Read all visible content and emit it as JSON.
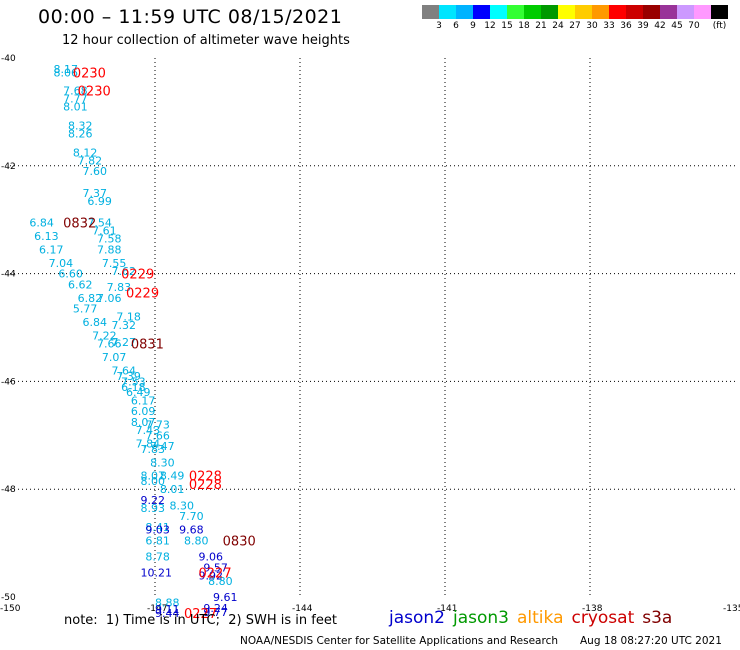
{
  "header": {
    "title": "00:00 – 11:59 UTC 08/15/2021",
    "subtitle": "12 hour collection of altimeter wave heights"
  },
  "legend": {
    "colors": [
      "#808080",
      "#00e5ff",
      "#00b3ff",
      "#0000ff",
      "#00ffff",
      "#33ff33",
      "#00cc00",
      "#009900",
      "#ffff00",
      "#ffcc00",
      "#ff9900",
      "#ff0000",
      "#cc0000",
      "#990000",
      "#993399",
      "#cc99ff",
      "#ff99ff",
      "#000000"
    ],
    "labels": [
      "3",
      "6",
      "9",
      "12",
      "15",
      "18",
      "21",
      "24",
      "27",
      "30",
      "33",
      "36",
      "39",
      "42",
      "45",
      "70",
      "(ft)"
    ]
  },
  "axes": {
    "lat_labels": [
      "-40",
      "-42",
      "-44",
      "-46",
      "-48",
      "-50"
    ],
    "lon_labels": [
      "-150",
      "-147",
      "-144",
      "-141",
      "-138",
      "-135"
    ]
  },
  "observations": [
    {
      "v": "8.17",
      "lon": -149.1,
      "lat": -40.2,
      "c": "#00b0e0"
    },
    {
      "v": "8.06",
      "lon": -149.1,
      "lat": -40.27,
      "c": "#00b0e0"
    },
    {
      "v": "7.68",
      "lon": -148.9,
      "lat": -40.6,
      "c": "#00b0e0"
    },
    {
      "v": "7.77",
      "lon": -148.9,
      "lat": -40.75,
      "c": "#00b0e0"
    },
    {
      "v": "8.01",
      "lon": -148.9,
      "lat": -40.9,
      "c": "#00b0e0"
    },
    {
      "v": "8.32",
      "lon": -148.8,
      "lat": -41.25,
      "c": "#00b0e0"
    },
    {
      "v": "8.26",
      "lon": -148.8,
      "lat": -41.4,
      "c": "#00b0e0"
    },
    {
      "v": "8.12",
      "lon": -148.7,
      "lat": -41.75,
      "c": "#00b0e0"
    },
    {
      "v": "7.82",
      "lon": -148.6,
      "lat": -41.9,
      "c": "#00b0e0"
    },
    {
      "v": "7.60",
      "lon": -148.5,
      "lat": -42.1,
      "c": "#00b0e0"
    },
    {
      "v": "7.37",
      "lon": -148.5,
      "lat": -42.5,
      "c": "#00b0e0"
    },
    {
      "v": "6.99",
      "lon": -148.4,
      "lat": -42.65,
      "c": "#00b0e0"
    },
    {
      "v": "6.84",
      "lon": -149.6,
      "lat": -43.05,
      "c": "#00b0e0"
    },
    {
      "v": "7.54",
      "lon": -148.4,
      "lat": -43.05,
      "c": "#00b0e0"
    },
    {
      "v": "7.61",
      "lon": -148.3,
      "lat": -43.2,
      "c": "#00b0e0"
    },
    {
      "v": "6.13",
      "lon": -149.5,
      "lat": -43.3,
      "c": "#00b0e0"
    },
    {
      "v": "7.58",
      "lon": -148.2,
      "lat": -43.35,
      "c": "#00b0e0"
    },
    {
      "v": "6.17",
      "lon": -149.4,
      "lat": -43.55,
      "c": "#00b0e0"
    },
    {
      "v": "7.88",
      "lon": -148.2,
      "lat": -43.55,
      "c": "#00b0e0"
    },
    {
      "v": "7.04",
      "lon": -149.2,
      "lat": -43.8,
      "c": "#00b0e0"
    },
    {
      "v": "7.55",
      "lon": -148.1,
      "lat": -43.8,
      "c": "#00b0e0"
    },
    {
      "v": "6.60",
      "lon": -149.0,
      "lat": -44.0,
      "c": "#00b0e0"
    },
    {
      "v": "7.62",
      "lon": -147.9,
      "lat": -43.95,
      "c": "#00b0e0"
    },
    {
      "v": "6.62",
      "lon": -148.8,
      "lat": -44.2,
      "c": "#00b0e0"
    },
    {
      "v": "7.83",
      "lon": -148.0,
      "lat": -44.25,
      "c": "#00b0e0"
    },
    {
      "v": "6.82",
      "lon": -148.6,
      "lat": -44.45,
      "c": "#00b0e0"
    },
    {
      "v": "7.06",
      "lon": -148.2,
      "lat": -44.45,
      "c": "#00b0e0"
    },
    {
      "v": "5.77",
      "lon": -148.7,
      "lat": -44.65,
      "c": "#00b0e0"
    },
    {
      "v": "7.18",
      "lon": -147.8,
      "lat": -44.8,
      "c": "#00b0e0"
    },
    {
      "v": "6.84",
      "lon": -148.5,
      "lat": -44.9,
      "c": "#00b0e0"
    },
    {
      "v": "7.32",
      "lon": -147.9,
      "lat": -44.95,
      "c": "#00b0e0"
    },
    {
      "v": "7.22",
      "lon": -148.3,
      "lat": -45.15,
      "c": "#00b0e0"
    },
    {
      "v": "7.66",
      "lon": -148.2,
      "lat": -45.3,
      "c": "#00b0e0"
    },
    {
      "v": "7.27",
      "lon": -147.9,
      "lat": -45.27,
      "c": "#00b0e0"
    },
    {
      "v": "7.07",
      "lon": -148.1,
      "lat": -45.55,
      "c": "#00b0e0"
    },
    {
      "v": "7.64",
      "lon": -147.9,
      "lat": -45.8,
      "c": "#00b0e0"
    },
    {
      "v": "7.39",
      "lon": -147.8,
      "lat": -45.9,
      "c": "#00b0e0"
    },
    {
      "v": "7.53",
      "lon": -147.7,
      "lat": -46.0,
      "c": "#00b0e0"
    },
    {
      "v": "6.18",
      "lon": -147.7,
      "lat": -46.1,
      "c": "#00b0e0"
    },
    {
      "v": "6.49",
      "lon": -147.6,
      "lat": -46.2,
      "c": "#00b0e0"
    },
    {
      "v": "6.17",
      "lon": -147.5,
      "lat": -46.35,
      "c": "#00b0e0"
    },
    {
      "v": "6.09",
      "lon": -147.5,
      "lat": -46.55,
      "c": "#00b0e0"
    },
    {
      "v": "8.07",
      "lon": -147.5,
      "lat": -46.75,
      "c": "#00b0e0"
    },
    {
      "v": "7.73",
      "lon": -147.2,
      "lat": -46.8,
      "c": "#00b0e0"
    },
    {
      "v": "7.43",
      "lon": -147.4,
      "lat": -46.9,
      "c": "#00b0e0"
    },
    {
      "v": "7.66",
      "lon": -147.2,
      "lat": -47.0,
      "c": "#00b0e0"
    },
    {
      "v": "7.84",
      "lon": -147.4,
      "lat": -47.15,
      "c": "#00b0e0"
    },
    {
      "v": "7.47",
      "lon": -147.1,
      "lat": -47.2,
      "c": "#00b0e0"
    },
    {
      "v": "7.83",
      "lon": -147.3,
      "lat": -47.25,
      "c": "#00b0e0"
    },
    {
      "v": "8.30",
      "lon": -147.1,
      "lat": -47.5,
      "c": "#00b0e0"
    },
    {
      "v": "8.07",
      "lon": -147.3,
      "lat": -47.75,
      "c": "#00b0e0"
    },
    {
      "v": "8.49",
      "lon": -146.9,
      "lat": -47.75,
      "c": "#00b0e0"
    },
    {
      "v": "8.00",
      "lon": -147.3,
      "lat": -47.85,
      "c": "#00b0e0"
    },
    {
      "v": "8.01",
      "lon": -146.9,
      "lat": -48.0,
      "c": "#00b0e0"
    },
    {
      "v": "9.22",
      "lon": -147.3,
      "lat": -48.2,
      "c": "#0000cc"
    },
    {
      "v": "8.30",
      "lon": -146.7,
      "lat": -48.3,
      "c": "#00b0e0"
    },
    {
      "v": "8.93",
      "lon": -147.3,
      "lat": -48.35,
      "c": "#00b0e0"
    },
    {
      "v": "7.70",
      "lon": -146.5,
      "lat": -48.5,
      "c": "#00b0e0"
    },
    {
      "v": "8.41",
      "lon": -147.2,
      "lat": -48.7,
      "c": "#00b0e0"
    },
    {
      "v": "9.03",
      "lon": -147.2,
      "lat": -48.75,
      "c": "#0000cc"
    },
    {
      "v": "9.68",
      "lon": -146.5,
      "lat": -48.75,
      "c": "#0000cc"
    },
    {
      "v": "6.81",
      "lon": -147.2,
      "lat": -48.95,
      "c": "#00b0e0"
    },
    {
      "v": "8.80",
      "lon": -146.4,
      "lat": -48.95,
      "c": "#00b0e0"
    },
    {
      "v": "9.06",
      "lon": -146.1,
      "lat": -49.25,
      "c": "#0000cc"
    },
    {
      "v": "8.78",
      "lon": -147.2,
      "lat": -49.25,
      "c": "#00b0e0"
    },
    {
      "v": "9.57",
      "lon": -146.0,
      "lat": -49.45,
      "c": "#0000cc"
    },
    {
      "v": "10.21",
      "lon": -147.3,
      "lat": -49.55,
      "c": "#0000cc"
    },
    {
      "v": "9.92",
      "lon": -146.1,
      "lat": -49.6,
      "c": "#0000cc"
    },
    {
      "v": "8.80",
      "lon": -145.9,
      "lat": -49.7,
      "c": "#00b0e0"
    },
    {
      "v": "9.61",
      "lon": -145.8,
      "lat": -50.0,
      "c": "#0000cc"
    },
    {
      "v": "8.88",
      "lon": -147.0,
      "lat": -50.1,
      "c": "#00b0e0"
    },
    {
      "v": "9.24",
      "lon": -146.0,
      "lat": -50.2,
      "c": "#0000cc"
    },
    {
      "v": "9.11",
      "lon": -147.0,
      "lat": -50.22,
      "c": "#0000cc"
    },
    {
      "v": "9.77",
      "lon": -146.0,
      "lat": -50.28,
      "c": "#0000cc"
    },
    {
      "v": "9.44",
      "lon": -147.0,
      "lat": -50.3,
      "c": "#0000cc"
    }
  ],
  "times": [
    {
      "t": "0230",
      "lon": -148.7,
      "lat": -40.27,
      "c": "#ff0000"
    },
    {
      "t": "0230",
      "lon": -148.6,
      "lat": -40.6,
      "c": "#ff0000"
    },
    {
      "t": "0832",
      "lon": -148.9,
      "lat": -43.05,
      "c": "#800000"
    },
    {
      "t": "0229",
      "lon": -147.7,
      "lat": -44.0,
      "c": "#ff0000"
    },
    {
      "t": "0229",
      "lon": -147.6,
      "lat": -44.35,
      "c": "#ff0000"
    },
    {
      "t": "0831",
      "lon": -147.5,
      "lat": -45.3,
      "c": "#800000"
    },
    {
      "t": "0228",
      "lon": -146.3,
      "lat": -47.75,
      "c": "#ff0000"
    },
    {
      "t": "0228",
      "lon": -146.3,
      "lat": -47.9,
      "c": "#ff0000"
    },
    {
      "t": "0830",
      "lon": -145.6,
      "lat": -48.95,
      "c": "#800000"
    },
    {
      "t": "0227",
      "lon": -146.1,
      "lat": -49.55,
      "c": "#ff0000"
    },
    {
      "t": "0227",
      "lon": -146.4,
      "lat": -50.3,
      "c": "#ff0000"
    }
  ],
  "footer": {
    "note": "note:  1) Time is in UTC;  2) SWH is in feet",
    "satellites": [
      {
        "name": "jason2",
        "color": "#0000cc"
      },
      {
        "name": "jason3",
        "color": "#009900"
      },
      {
        "name": "altika",
        "color": "#ff9900"
      },
      {
        "name": "cryosat",
        "color": "#cc0000"
      },
      {
        "name": "s3a",
        "color": "#800000"
      }
    ],
    "credit": "NOAA/NESDIS Center for Satellite Applications and Research",
    "timestamp": "Aug 18 08:27:20 UTC 2021"
  }
}
